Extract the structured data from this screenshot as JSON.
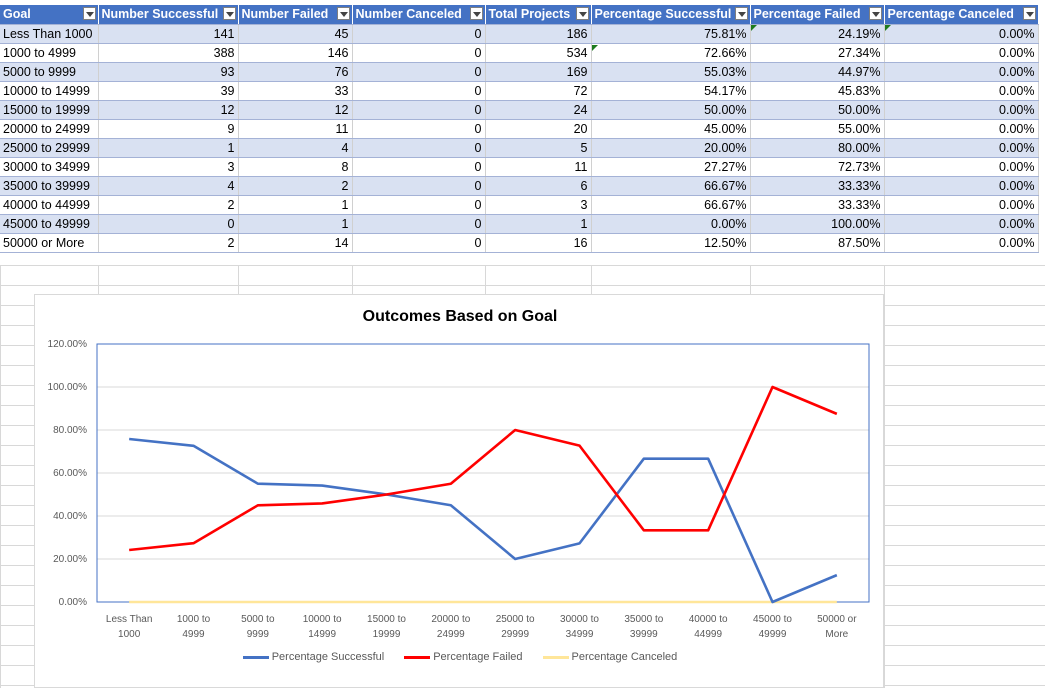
{
  "table": {
    "headers": [
      "Goal",
      "Number Successful",
      "Number Failed",
      "Number Canceled",
      "Total Projects",
      "Percentage Successful",
      "Percentage Failed",
      "Percentage Canceled"
    ],
    "rows": [
      [
        "Less Than 1000",
        "141",
        "45",
        "0",
        "186",
        "75.81%",
        "24.19%",
        "0.00%"
      ],
      [
        "1000 to 4999",
        "388",
        "146",
        "0",
        "534",
        "72.66%",
        "27.34%",
        "0.00%"
      ],
      [
        "5000 to 9999",
        "93",
        "76",
        "0",
        "169",
        "55.03%",
        "44.97%",
        "0.00%"
      ],
      [
        "10000 to 14999",
        "39",
        "33",
        "0",
        "72",
        "54.17%",
        "45.83%",
        "0.00%"
      ],
      [
        "15000 to 19999",
        "12",
        "12",
        "0",
        "24",
        "50.00%",
        "50.00%",
        "0.00%"
      ],
      [
        "20000 to 24999",
        "9",
        "11",
        "0",
        "20",
        "45.00%",
        "55.00%",
        "0.00%"
      ],
      [
        "25000 to 29999",
        "1",
        "4",
        "0",
        "5",
        "20.00%",
        "80.00%",
        "0.00%"
      ],
      [
        "30000 to 34999",
        "3",
        "8",
        "0",
        "11",
        "27.27%",
        "72.73%",
        "0.00%"
      ],
      [
        "35000 to 39999",
        "4",
        "2",
        "0",
        "6",
        "66.67%",
        "33.33%",
        "0.00%"
      ],
      [
        "40000 to 44999",
        "2",
        "1",
        "0",
        "3",
        "66.67%",
        "33.33%",
        "0.00%"
      ],
      [
        "45000 to 49999",
        "0",
        "1",
        "0",
        "1",
        "0.00%",
        "100.00%",
        "0.00%"
      ],
      [
        "50000 or More",
        "2",
        "14",
        "0",
        "16",
        "12.50%",
        "87.50%",
        "0.00%"
      ]
    ]
  },
  "chart_data": {
    "type": "line",
    "title": "Outcomes Based on Goal",
    "categories": [
      [
        "Less Than",
        "1000"
      ],
      [
        "1000 to",
        "4999"
      ],
      [
        "5000 to",
        "9999"
      ],
      [
        "10000 to",
        "14999"
      ],
      [
        "15000 to",
        "19999"
      ],
      [
        "20000 to",
        "24999"
      ],
      [
        "25000 to",
        "29999"
      ],
      [
        "30000 to",
        "34999"
      ],
      [
        "35000 to",
        "39999"
      ],
      [
        "40000 to",
        "44999"
      ],
      [
        "45000 to",
        "49999"
      ],
      [
        "50000 or",
        "More"
      ]
    ],
    "ylim": [
      0,
      1.2
    ],
    "yticks": [
      "0.00%",
      "20.00%",
      "40.00%",
      "60.00%",
      "80.00%",
      "100.00%",
      "120.00%"
    ],
    "grid": true,
    "legend_position": "bottom",
    "series": [
      {
        "name": "Percentage Successful",
        "color": "#4472c4",
        "values": [
          0.7581,
          0.7266,
          0.5503,
          0.5417,
          0.5,
          0.45,
          0.2,
          0.2727,
          0.6667,
          0.6667,
          0.0,
          0.125
        ]
      },
      {
        "name": "Percentage Failed",
        "color": "#ff0000",
        "values": [
          0.2419,
          0.2734,
          0.4497,
          0.4583,
          0.5,
          0.55,
          0.8,
          0.7273,
          0.3333,
          0.3333,
          1.0,
          0.875
        ]
      },
      {
        "name": "Percentage Canceled",
        "color": "#ffe699",
        "values": [
          0,
          0,
          0,
          0,
          0,
          0,
          0,
          0,
          0,
          0,
          0,
          0
        ]
      }
    ]
  }
}
